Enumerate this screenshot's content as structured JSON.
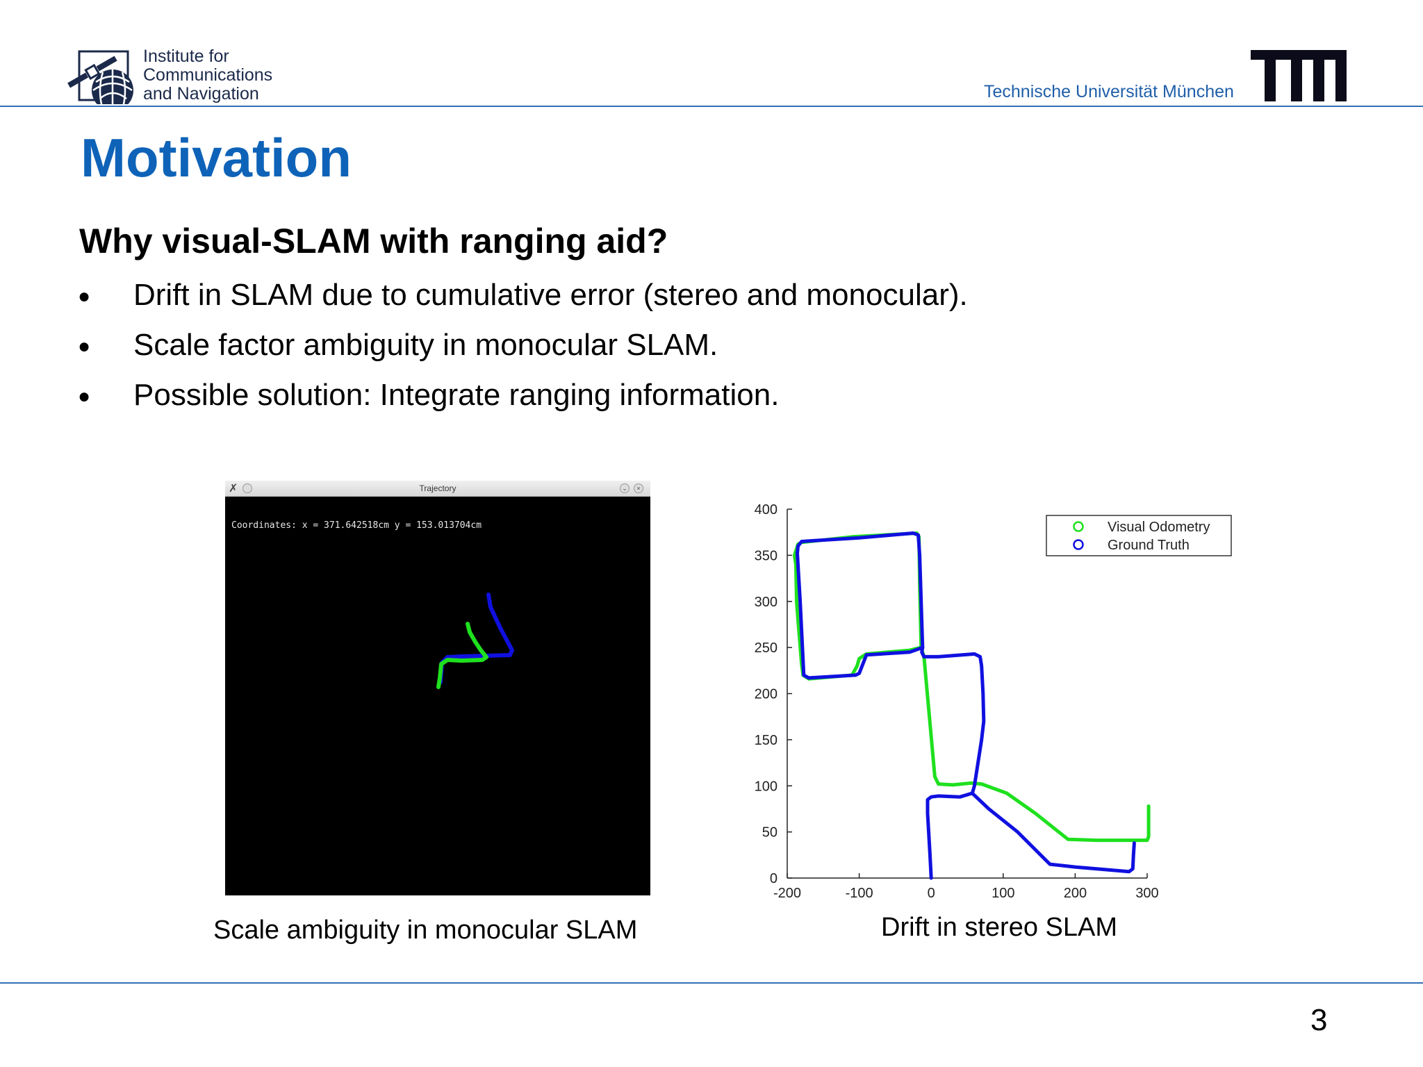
{
  "header": {
    "institute_lines": [
      "Institute for",
      "Communications",
      "and Navigation"
    ],
    "university": "Technische Universität München"
  },
  "slide": {
    "title": "Motivation",
    "subtitle": "Why visual-SLAM with ranging aid?",
    "bullets": [
      "Drift in SLAM due to cumulative error (stereo and monocular).",
      "Scale factor ambiguity in monocular SLAM.",
      "Possible solution: Integrate ranging information."
    ],
    "bullet_symbol": "●",
    "page_number": "3"
  },
  "trajectory_window": {
    "title": "Trajectory",
    "coordinates_text": "Coordinates: x = 371.642518cm y = 153.013704cm",
    "caption": "Scale ambiguity in monocular SLAM",
    "colors": {
      "estimate": "#1fe01f",
      "reference": "#1010e0"
    }
  },
  "chart_data": {
    "type": "line",
    "title": "",
    "xlabel": "",
    "ylabel": "",
    "caption": "Drift in stereo SLAM",
    "xlim": [
      -200,
      300
    ],
    "ylim": [
      0,
      400
    ],
    "xticks": [
      -200,
      -100,
      0,
      100,
      200,
      300
    ],
    "yticks": [
      0,
      50,
      100,
      150,
      200,
      250,
      300,
      350,
      400
    ],
    "grid": false,
    "legend": "top-right",
    "series": [
      {
        "name": "Visual Odometry",
        "color": "#1fe01f",
        "points": [
          [
            -190,
            350
          ],
          [
            -185,
            362
          ],
          [
            -180,
            364
          ],
          [
            -110,
            370
          ],
          [
            -20,
            374
          ],
          [
            -17,
            370
          ],
          [
            -16,
            320
          ],
          [
            -14,
            250
          ],
          [
            -30,
            247
          ],
          [
            -90,
            243
          ],
          [
            -100,
            238
          ],
          [
            -103,
            230
          ],
          [
            -110,
            220
          ],
          [
            -170,
            216
          ],
          [
            -178,
            220
          ],
          [
            -180,
            232
          ],
          [
            -185,
            280
          ],
          [
            -187,
            300
          ],
          [
            -188,
            340
          ],
          [
            -190,
            350
          ]
        ],
        "points2": [
          [
            -14,
            250
          ],
          [
            -10,
            240
          ],
          [
            5,
            110
          ],
          [
            10,
            102
          ],
          [
            30,
            101
          ],
          [
            55,
            103
          ],
          [
            70,
            102
          ],
          [
            105,
            92
          ],
          [
            145,
            70
          ],
          [
            190,
            42
          ],
          [
            230,
            41
          ],
          [
            300,
            41
          ],
          [
            302,
            45
          ],
          [
            302,
            78
          ]
        ]
      },
      {
        "name": "Ground Truth",
        "color": "#1010e0",
        "points": [
          [
            -185,
            360
          ],
          [
            -180,
            365
          ],
          [
            -160,
            366
          ],
          [
            -100,
            369
          ],
          [
            -25,
            374
          ],
          [
            -18,
            372
          ],
          [
            -16,
            350
          ],
          [
            -14,
            300
          ],
          [
            -12,
            250
          ],
          [
            -30,
            245
          ],
          [
            -90,
            242
          ],
          [
            -95,
            232
          ],
          [
            -100,
            222
          ],
          [
            -105,
            220
          ],
          [
            -170,
            217
          ],
          [
            -177,
            220
          ],
          [
            -182,
            300
          ],
          [
            -186,
            352
          ],
          [
            -185,
            360
          ]
        ],
        "points2": [
          [
            -12,
            250
          ],
          [
            -13,
            245
          ],
          [
            -10,
            240
          ],
          [
            10,
            240
          ],
          [
            60,
            243
          ],
          [
            68,
            240
          ],
          [
            70,
            230
          ],
          [
            72,
            200
          ],
          [
            73,
            170
          ],
          [
            70,
            150
          ],
          [
            60,
            100
          ],
          [
            57,
            92
          ],
          [
            40,
            88
          ],
          [
            10,
            89
          ],
          [
            0,
            88
          ],
          [
            -5,
            85
          ],
          [
            -5,
            70
          ],
          [
            -2,
            30
          ],
          [
            0,
            0
          ]
        ],
        "points3": [
          [
            57,
            92
          ],
          [
            80,
            75
          ],
          [
            120,
            50
          ],
          [
            165,
            15
          ],
          [
            200,
            12
          ],
          [
            230,
            10
          ],
          [
            275,
            7
          ],
          [
            280,
            10
          ],
          [
            281,
            25
          ],
          [
            282,
            38
          ]
        ]
      }
    ]
  }
}
